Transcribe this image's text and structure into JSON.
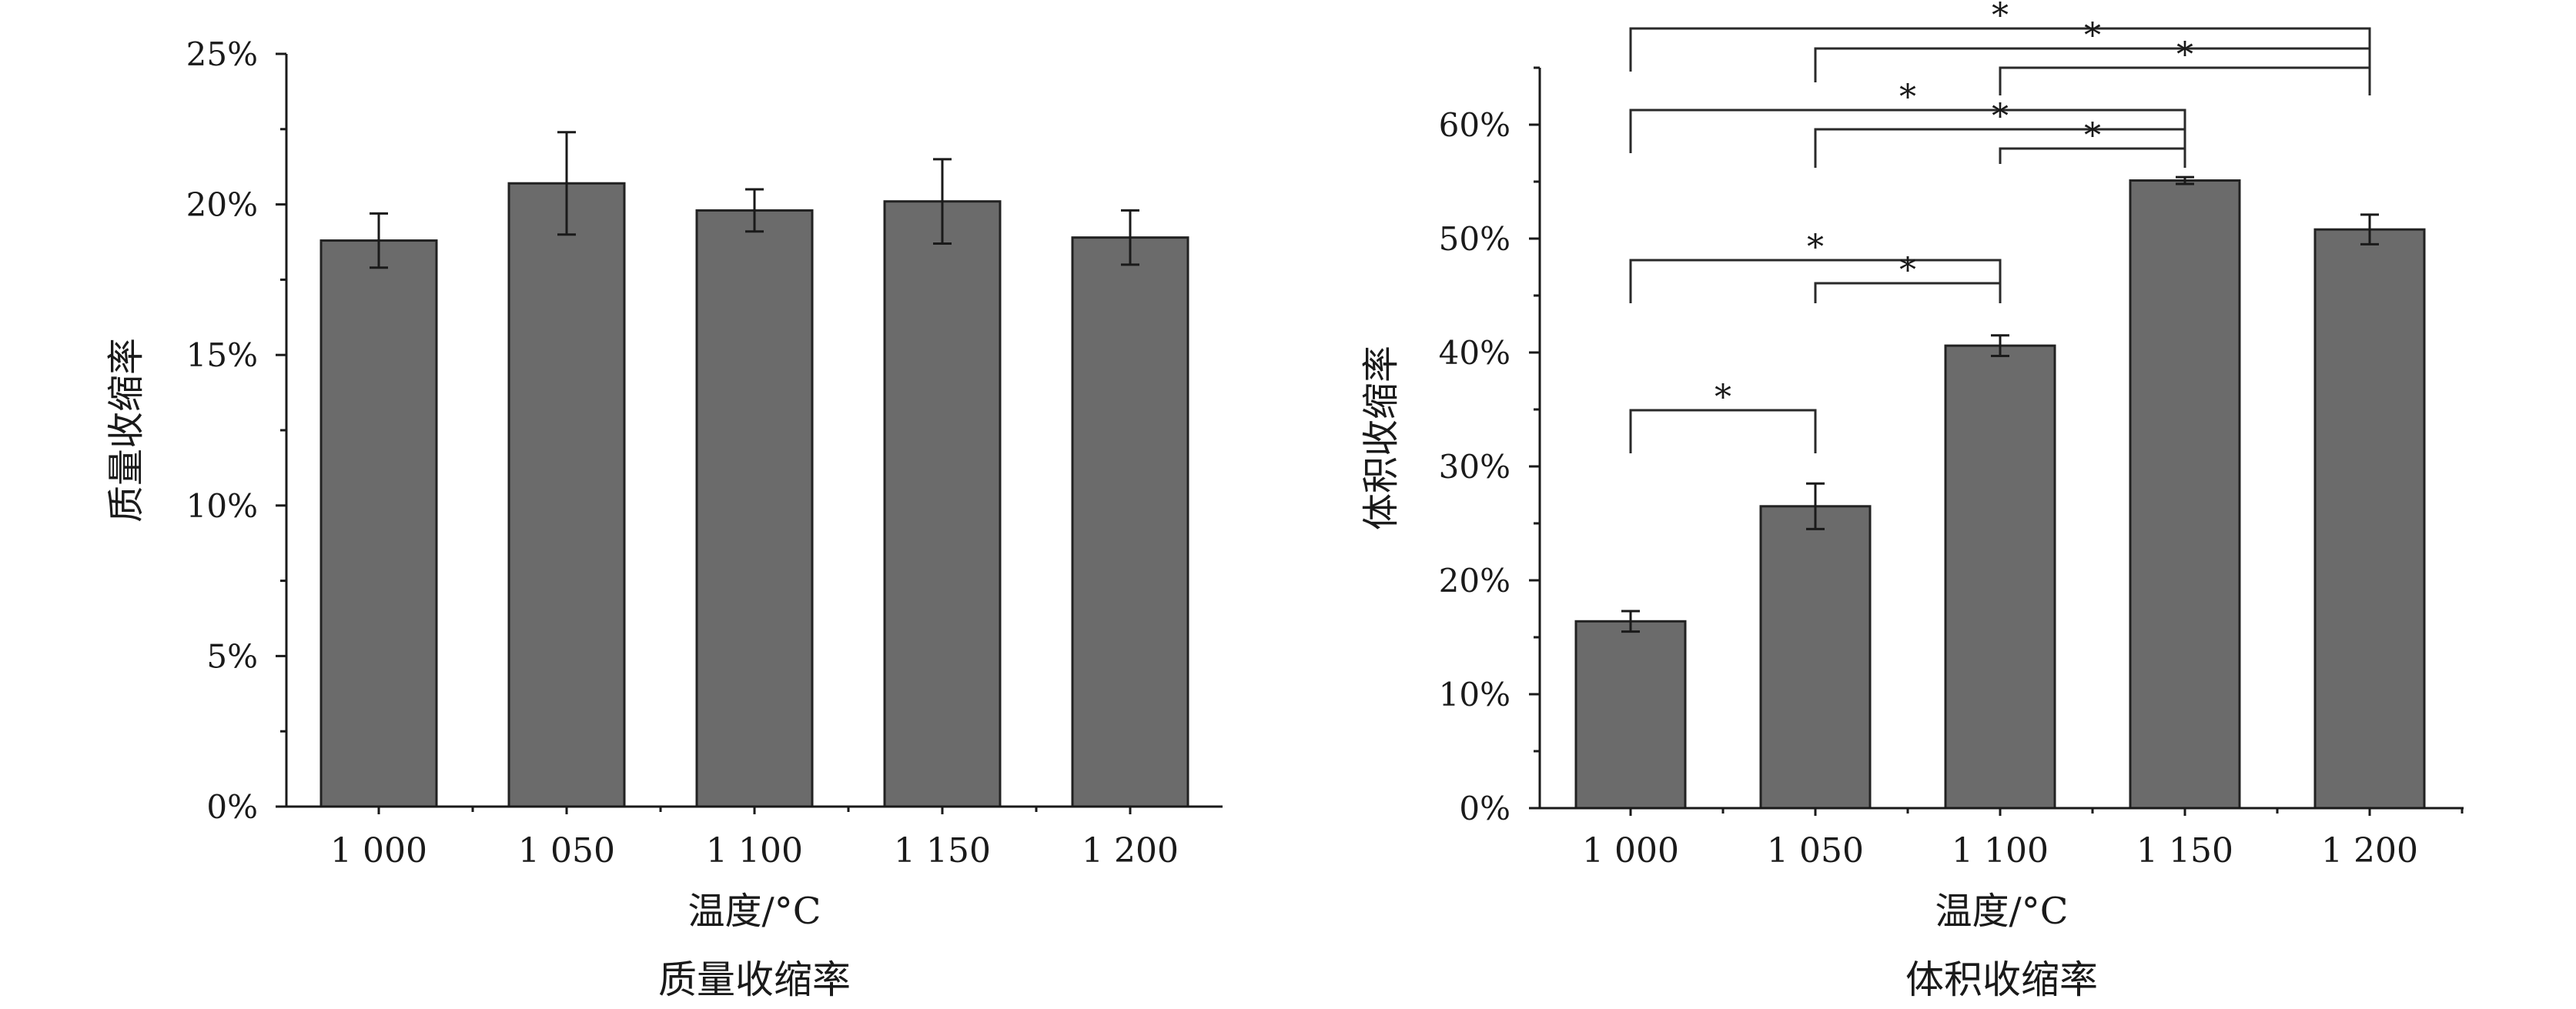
{
  "chart_data": [
    {
      "type": "bar",
      "title": "质量收缩率",
      "xlabel": "温度/°C",
      "ylabel": "质量收缩率",
      "categories": [
        "1 000",
        "1 050",
        "1 100",
        "1 150",
        "1 200"
      ],
      "values": [
        18.8,
        20.7,
        19.8,
        20.1,
        18.9
      ],
      "errors": [
        0.9,
        1.7,
        0.7,
        1.4,
        0.9
      ],
      "ylim": [
        0,
        25
      ],
      "yticks": [
        0,
        5,
        10,
        15,
        20,
        25
      ],
      "ytick_labels": [
        "0%",
        "5%",
        "10%",
        "15%",
        "20%",
        "25%"
      ],
      "bar_color": "#6b6b6b",
      "grid": false,
      "significance": []
    },
    {
      "type": "bar",
      "title": "体积收缩率",
      "xlabel": "温度/°C",
      "ylabel": "体积收缩率",
      "categories": [
        "1 000",
        "1 050",
        "1 100",
        "1 150",
        "1 200"
      ],
      "values": [
        16.4,
        26.5,
        40.6,
        55.1,
        50.8
      ],
      "errors": [
        0.9,
        2.0,
        0.9,
        0.3,
        1.3
      ],
      "ylim": [
        0,
        65
      ],
      "yticks": [
        0,
        10,
        20,
        30,
        40,
        50,
        60
      ],
      "ytick_labels": [
        "0%",
        "10%",
        "20%",
        "30%",
        "40%",
        "50%",
        "60%"
      ],
      "bar_color": "#6b6b6b",
      "grid": false,
      "significance": [
        {
          "from": 0,
          "to": 1,
          "label": "*"
        },
        {
          "from": 0,
          "to": 2,
          "label": "*"
        },
        {
          "from": 1,
          "to": 2,
          "label": "*"
        },
        {
          "from": 0,
          "to": 3,
          "label": "*"
        },
        {
          "from": 1,
          "to": 3,
          "label": "*"
        },
        {
          "from": 2,
          "to": 3,
          "label": "*"
        },
        {
          "from": 0,
          "to": 4,
          "label": "*"
        },
        {
          "from": 1,
          "to": 4,
          "label": "*"
        },
        {
          "from": 2,
          "to": 4,
          "label": "*"
        }
      ]
    }
  ]
}
